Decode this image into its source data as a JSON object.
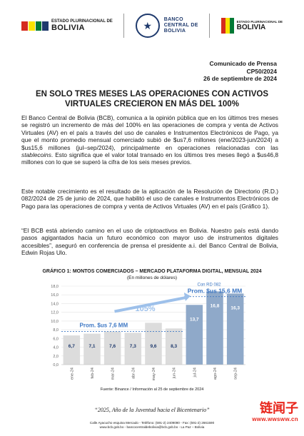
{
  "header": {
    "left_logo_small": "ESTADO PLURINACIONAL DE",
    "left_logo_big": "BOLIVIA",
    "center_logo_line1": "BANCO",
    "center_logo_line2": "CENTRAL DE",
    "center_logo_line3": "BOLIVIA",
    "right_logo_small": "ESTADO PLURINACIONAL DE",
    "right_logo_big": "BOLIVIA"
  },
  "communique": {
    "line1": "Comunicado de Prensa",
    "line2": "CP50/2024",
    "line3": "26 de septiembre de 2024"
  },
  "title": {
    "line1": "EN SOLO TRES MESES LAS OPERACIONES CON ACTIVOS",
    "line2": "VIRTUALES CRECIERON EN MÁS DEL 100%"
  },
  "paragraphs": {
    "p1_a": "El Banco Central de Bolivia (BCB), comunica a la opinión pública que en los últimos tres meses se registró un incremento de más del 100% en las operaciones de compra y venta de Activos Virtuales (AV) en el país a través del uso de canales e Instrumentos Electrónicos de Pago, ya que el monto promedio mensual comerciado subió de $us7,6 millones (ene/2023-jun/2024) a $us15,6 millones (jul–sep/2024), principalmente en operaciones relacionadas con las ",
    "p1_em": "stablecoins",
    "p1_b": ". Esto significa que el valor total transado en los últimos tres meses llegó a $us46,8 millones con lo que se superó la cifra de los seis meses previos.",
    "p2": "Este notable crecimiento es el resultado de la aplicación de la Resolución de Directorio (R.D.) 082/2024 de 25 de junio de 2024, que habilitó el uso de canales e Instrumentos Electrónicos de Pago para las operaciones de compra y venta de Activos Virtuales (AV) en el país (Gráfico 1).",
    "p3_a": "“El BCB está abriendo camino en el uso de criptoactivos en Bolivia. Nuestro país está dando pasos agigantados hacia un futuro económico con mayor uso de instrumentos digitales accesibles”",
    "p3_b": ", aseguró en conferencia de prensa el presidente a.i. del Banco Central de Bolivia, Edwin Rojas Ulo."
  },
  "chart_title": "GRÁFICO 1: MONTOS COMERCIADOS – MERCADO PLATAFORMA DIGITAL, MENSUAL 2024",
  "chart_subtitle": "(En millones de dólares)",
  "chart_data": {
    "type": "bar",
    "categories": [
      "ene-24",
      "feb-24",
      "mar-24",
      "abr-24",
      "may-24",
      "jun-24",
      "jul-24",
      "ago-24",
      "sep-24"
    ],
    "values": [
      6.7,
      7.1,
      7.6,
      7.3,
      9.6,
      8.3,
      13.7,
      16.8,
      16.3
    ],
    "value_labels": [
      "6,7",
      "7,1",
      "7,6",
      "7,3",
      "9,6",
      "8,3",
      "13,7",
      "16,8",
      "16,3"
    ],
    "ylim": [
      0,
      18
    ],
    "yticks": [
      0,
      2,
      4,
      6,
      8,
      10,
      12,
      14,
      16,
      18
    ],
    "ytick_labels": [
      "0,0",
      "2,0",
      "4,0",
      "6,0",
      "8,0",
      "10,0",
      "12,0",
      "14,0",
      "16,0",
      "18,0"
    ],
    "grid": true,
    "colors": {
      "before": "#dcdcdc",
      "after": "#8fa9c9",
      "accent": "#3d77c4",
      "label_before": "#1f3a6d",
      "label_after": "#ffffff"
    },
    "annotations": {
      "avg_before": "Prom. $us 7,6 MM",
      "avg_after": "Prom. $us 15,6 MM",
      "growth": "105%",
      "rd_label": "Con RD 082"
    }
  },
  "source": "Fuente: Binance / Información al 25 de septiembre de 2024",
  "motto": "“2025, Año de la Juventud hacia el Bicentenario”",
  "footer": {
    "line1": "Calle Ayacucho esquina Mercado  -  Teléfono: (591-2) 2409090  -  Fax: (591-2) 2661590",
    "line2": "www.bcb.gob.bo  -  bancocentraldebolivia@bcb.gob.bo  -  La Paz – Bolivia"
  },
  "watermark": {
    "top": "链闻子",
    "bottom": "www.wwsww.cn"
  }
}
